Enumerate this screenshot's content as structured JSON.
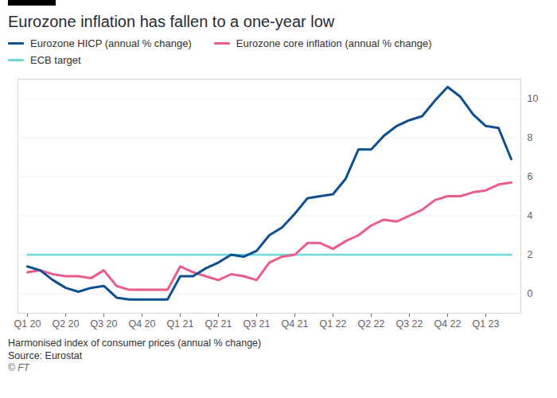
{
  "chart_data": {
    "type": "line",
    "title": "Eurozone inflation has fallen to a one-year low",
    "caption": "Harmonised index of consumer prices (annual % change)",
    "source": "Source: Eurostat",
    "credit": "© FT",
    "categories": [
      "Q1 20",
      null,
      null,
      "Q2 20",
      null,
      null,
      "Q3 20",
      null,
      null,
      "Q4 20",
      null,
      null,
      "Q1 21",
      null,
      null,
      "Q2 21",
      null,
      null,
      "Q3 21",
      null,
      null,
      "Q4 21",
      null,
      null,
      "Q1 22",
      null,
      null,
      "Q2 22",
      null,
      null,
      "Q3 22",
      null,
      null,
      "Q4 22",
      null,
      null,
      "Q1 23",
      null,
      null
    ],
    "series": [
      {
        "name": "Eurozone HICP (annual % change)",
        "color": "#0d4f91",
        "values": [
          1.4,
          1.2,
          0.7,
          0.3,
          0.1,
          0.3,
          0.4,
          -0.2,
          -0.3,
          -0.3,
          -0.3,
          -0.3,
          0.9,
          0.9,
          1.3,
          1.6,
          2.0,
          1.9,
          2.2,
          3.0,
          3.4,
          4.1,
          4.9,
          5.0,
          5.1,
          5.9,
          7.4,
          7.4,
          8.1,
          8.6,
          8.9,
          9.1,
          9.9,
          10.6,
          10.1,
          9.2,
          8.6,
          8.5,
          6.9
        ]
      },
      {
        "name": "Eurozone core inflation (annual % change)",
        "color": "#e95d8c",
        "values": [
          1.1,
          1.2,
          1.0,
          0.9,
          0.9,
          0.8,
          1.2,
          0.4,
          0.2,
          0.2,
          0.2,
          0.2,
          1.4,
          1.1,
          0.9,
          0.7,
          1.0,
          0.9,
          0.7,
          1.6,
          1.9,
          2.0,
          2.6,
          2.6,
          2.3,
          2.7,
          3.0,
          3.5,
          3.8,
          3.7,
          4.0,
          4.3,
          4.8,
          5.0,
          5.0,
          5.2,
          5.3,
          5.6,
          5.7
        ]
      },
      {
        "name": "ECB target",
        "color": "#6fd6dc",
        "values": [
          2,
          2,
          2,
          2,
          2,
          2,
          2,
          2,
          2,
          2,
          2,
          2,
          2,
          2,
          2,
          2,
          2,
          2,
          2,
          2,
          2,
          2,
          2,
          2,
          2,
          2,
          2,
          2,
          2,
          2,
          2,
          2,
          2,
          2,
          2,
          2,
          2,
          2,
          2
        ]
      }
    ],
    "ylim": [
      -1,
      11
    ],
    "yticks": [
      0,
      2,
      4,
      6,
      8,
      10
    ],
    "grid": true,
    "legend": "top-left"
  }
}
